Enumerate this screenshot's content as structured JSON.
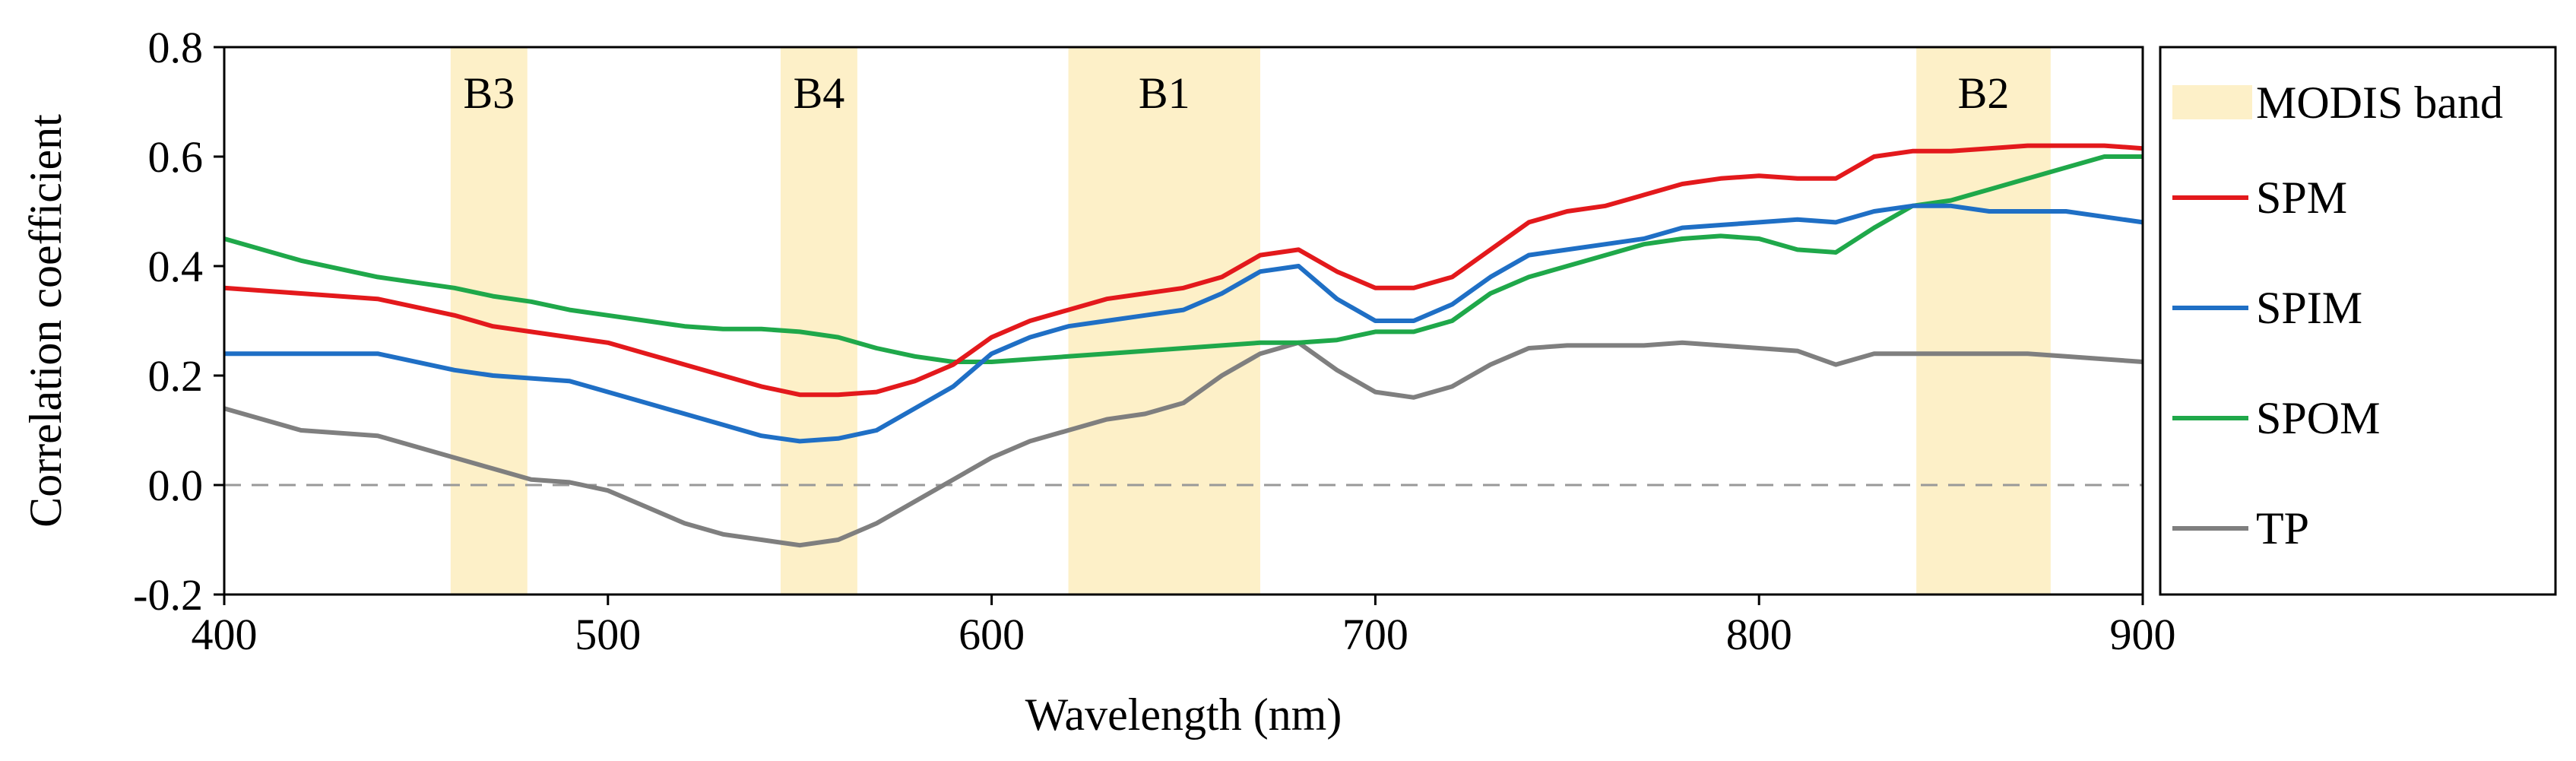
{
  "chart_data": {
    "type": "line",
    "title": "",
    "xlabel": "Wavelength (nm)",
    "ylabel": "Correlation coefficient",
    "xlim": [
      400,
      900
    ],
    "ylim": [
      -0.2,
      0.8
    ],
    "xticks": [
      "400",
      "500",
      "600",
      "700",
      "800",
      "900"
    ],
    "xtick_values": [
      400,
      500,
      600,
      700,
      800,
      900
    ],
    "yticks": [
      "0.8",
      "0.6",
      "0.4",
      "0.2",
      "0.0",
      "-0.2"
    ],
    "ytick_values": [
      0.8,
      0.6,
      0.4,
      0.2,
      0.0,
      -0.2
    ],
    "grid": false,
    "legend_position": "right",
    "reference_line": {
      "y": 0.0,
      "style": "dashed",
      "color": "#999999"
    },
    "bands": [
      {
        "label": "B3",
        "start": 459,
        "end": 479
      },
      {
        "label": "B4",
        "start": 545,
        "end": 565
      },
      {
        "label": "B1",
        "start": 620,
        "end": 670
      },
      {
        "label": "B2",
        "start": 841,
        "end": 876
      }
    ],
    "band_legend_label": "MODIS band",
    "band_color": "#fdf0c8",
    "series": [
      {
        "name": "SPM",
        "color": "#e3191c",
        "x": [
          400,
          420,
          440,
          460,
          470,
          480,
          490,
          500,
          510,
          520,
          530,
          540,
          550,
          560,
          570,
          580,
          590,
          600,
          610,
          620,
          630,
          640,
          650,
          660,
          670,
          680,
          690,
          700,
          710,
          720,
          730,
          740,
          750,
          760,
          770,
          780,
          790,
          800,
          810,
          820,
          830,
          840,
          850,
          860,
          870,
          880,
          890,
          900
        ],
        "y": [
          0.36,
          0.35,
          0.34,
          0.31,
          0.29,
          0.28,
          0.27,
          0.26,
          0.24,
          0.22,
          0.2,
          0.18,
          0.165,
          0.165,
          0.17,
          0.19,
          0.22,
          0.27,
          0.3,
          0.32,
          0.34,
          0.35,
          0.36,
          0.38,
          0.42,
          0.43,
          0.39,
          0.36,
          0.36,
          0.38,
          0.43,
          0.48,
          0.5,
          0.51,
          0.53,
          0.55,
          0.56,
          0.565,
          0.56,
          0.56,
          0.6,
          0.61,
          0.61,
          0.615,
          0.62,
          0.62,
          0.62,
          0.615
        ]
      },
      {
        "name": "SPIM",
        "color": "#1f6fc5",
        "x": [
          400,
          420,
          440,
          460,
          470,
          480,
          490,
          500,
          510,
          520,
          530,
          540,
          550,
          560,
          570,
          580,
          590,
          600,
          610,
          620,
          630,
          640,
          650,
          660,
          670,
          680,
          690,
          700,
          710,
          720,
          730,
          740,
          750,
          760,
          770,
          780,
          790,
          800,
          810,
          820,
          830,
          840,
          850,
          860,
          870,
          880,
          890,
          900
        ],
        "y": [
          0.24,
          0.24,
          0.24,
          0.21,
          0.2,
          0.195,
          0.19,
          0.17,
          0.15,
          0.13,
          0.11,
          0.09,
          0.08,
          0.085,
          0.1,
          0.14,
          0.18,
          0.24,
          0.27,
          0.29,
          0.3,
          0.31,
          0.32,
          0.35,
          0.39,
          0.4,
          0.34,
          0.3,
          0.3,
          0.33,
          0.38,
          0.42,
          0.43,
          0.44,
          0.45,
          0.47,
          0.475,
          0.48,
          0.485,
          0.48,
          0.5,
          0.51,
          0.51,
          0.5,
          0.5,
          0.5,
          0.49,
          0.48
        ]
      },
      {
        "name": "SPOM",
        "color": "#1fa84a",
        "x": [
          400,
          420,
          440,
          460,
          470,
          480,
          490,
          500,
          510,
          520,
          530,
          540,
          550,
          560,
          570,
          580,
          590,
          600,
          610,
          620,
          630,
          640,
          650,
          660,
          670,
          680,
          690,
          700,
          710,
          720,
          730,
          740,
          750,
          760,
          770,
          780,
          790,
          800,
          810,
          820,
          830,
          840,
          850,
          860,
          870,
          880,
          890,
          900
        ],
        "y": [
          0.45,
          0.41,
          0.38,
          0.36,
          0.345,
          0.335,
          0.32,
          0.31,
          0.3,
          0.29,
          0.285,
          0.285,
          0.28,
          0.27,
          0.25,
          0.235,
          0.225,
          0.225,
          0.23,
          0.235,
          0.24,
          0.245,
          0.25,
          0.255,
          0.26,
          0.26,
          0.265,
          0.28,
          0.28,
          0.3,
          0.35,
          0.38,
          0.4,
          0.42,
          0.44,
          0.45,
          0.455,
          0.45,
          0.43,
          0.425,
          0.47,
          0.51,
          0.52,
          0.54,
          0.56,
          0.58,
          0.6,
          0.6
        ]
      },
      {
        "name": "TP",
        "color": "#7f7f7f",
        "x": [
          400,
          420,
          440,
          460,
          470,
          480,
          490,
          500,
          510,
          520,
          530,
          540,
          550,
          560,
          570,
          580,
          590,
          600,
          610,
          620,
          630,
          640,
          650,
          660,
          670,
          680,
          690,
          700,
          710,
          720,
          730,
          740,
          750,
          760,
          770,
          780,
          790,
          800,
          810,
          820,
          830,
          840,
          850,
          860,
          870,
          880,
          890,
          900
        ],
        "y": [
          0.14,
          0.1,
          0.09,
          0.05,
          0.03,
          0.01,
          0.005,
          -0.01,
          -0.04,
          -0.07,
          -0.09,
          -0.1,
          -0.11,
          -0.1,
          -0.07,
          -0.03,
          0.01,
          0.05,
          0.08,
          0.1,
          0.12,
          0.13,
          0.15,
          0.2,
          0.24,
          0.26,
          0.21,
          0.17,
          0.16,
          0.18,
          0.22,
          0.25,
          0.255,
          0.255,
          0.255,
          0.26,
          0.255,
          0.25,
          0.245,
          0.22,
          0.24,
          0.24,
          0.24,
          0.24,
          0.24,
          0.235,
          0.23,
          0.225
        ]
      }
    ]
  }
}
